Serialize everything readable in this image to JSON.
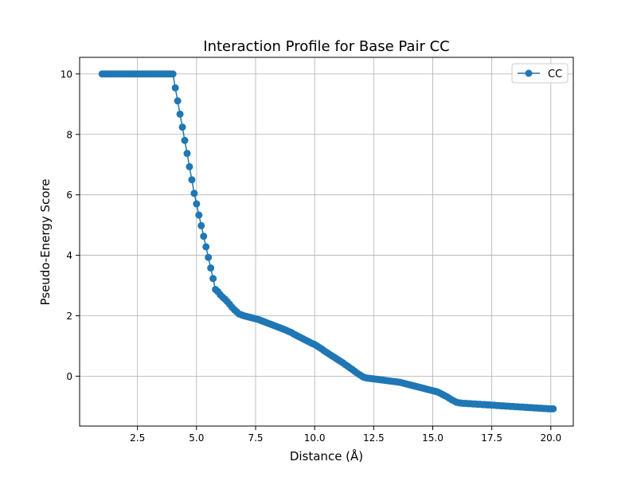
{
  "chart_data": {
    "type": "line",
    "title": "Interaction Profile for Base Pair CC",
    "xlabel": "Distance (Å)",
    "ylabel": "Pseudo-Energy Score",
    "xlim": [
      0.05,
      20.95
    ],
    "ylim": [
      -1.65,
      10.55
    ],
    "xticks": [
      2.5,
      5.0,
      7.5,
      10.0,
      12.5,
      15.0,
      17.5,
      20.0
    ],
    "xtick_labels": [
      "2.5",
      "5.0",
      "7.5",
      "10.0",
      "12.5",
      "15.0",
      "17.5",
      "20.0"
    ],
    "yticks": [
      0,
      2,
      4,
      6,
      8,
      10
    ],
    "ytick_labels": [
      "0",
      "2",
      "4",
      "6",
      "8",
      "10"
    ],
    "grid": true,
    "legend_position": "top-right",
    "series": [
      {
        "name": "CC",
        "color": "#1f77b4",
        "marker": "circle",
        "x_start": 1.0,
        "x_step": 0.1,
        "y": [
          10.0,
          10.0,
          10.0,
          10.0,
          10.0,
          10.0,
          10.0,
          10.0,
          10.0,
          10.0,
          10.0,
          10.0,
          10.0,
          10.0,
          10.0,
          10.0,
          10.0,
          10.0,
          10.0,
          10.0,
          10.0,
          10.0,
          10.0,
          10.0,
          10.0,
          10.0,
          10.0,
          10.0,
          10.0,
          10.0,
          10.0,
          9.54,
          9.11,
          8.67,
          8.24,
          7.8,
          7.37,
          6.93,
          6.5,
          6.05,
          5.7,
          5.33,
          4.98,
          4.63,
          4.28,
          3.93,
          3.58,
          3.23,
          2.87,
          2.8,
          2.7,
          2.62,
          2.55,
          2.47,
          2.38,
          2.28,
          2.2,
          2.13,
          2.06,
          2.03,
          2.0,
          1.98,
          1.96,
          1.94,
          1.92,
          1.9,
          1.88,
          1.85,
          1.82,
          1.79,
          1.76,
          1.73,
          1.7,
          1.67,
          1.64,
          1.61,
          1.58,
          1.55,
          1.52,
          1.48,
          1.45,
          1.4,
          1.36,
          1.32,
          1.28,
          1.24,
          1.2,
          1.16,
          1.12,
          1.08,
          1.05,
          1.0,
          0.95,
          0.9,
          0.84,
          0.79,
          0.74,
          0.69,
          0.64,
          0.59,
          0.54,
          0.49,
          0.44,
          0.38,
          0.33,
          0.27,
          0.22,
          0.16,
          0.1,
          0.05,
          0.0,
          -0.04,
          -0.06,
          -0.07,
          -0.08,
          -0.09,
          -0.1,
          -0.11,
          -0.12,
          -0.13,
          -0.14,
          -0.15,
          -0.16,
          -0.17,
          -0.18,
          -0.19,
          -0.2,
          -0.22,
          -0.24,
          -0.26,
          -0.28,
          -0.3,
          -0.32,
          -0.34,
          -0.36,
          -0.38,
          -0.4,
          -0.42,
          -0.44,
          -0.46,
          -0.48,
          -0.5,
          -0.52,
          -0.56,
          -0.6,
          -0.64,
          -0.68,
          -0.73,
          -0.78,
          -0.82,
          -0.86,
          -0.88,
          -0.89,
          -0.9,
          -0.9,
          -0.91,
          -0.91,
          -0.92,
          -0.92,
          -0.93,
          -0.93,
          -0.94,
          -0.94,
          -0.95,
          -0.95,
          -0.96,
          -0.96,
          -0.97,
          -0.97,
          -0.98,
          -0.98,
          -0.99,
          -0.99,
          -1.0,
          -1.0,
          -1.01,
          -1.01,
          -1.02,
          -1.02,
          -1.03,
          -1.03,
          -1.04,
          -1.04,
          -1.05,
          -1.05,
          -1.06,
          -1.06,
          -1.07,
          -1.07,
          -1.08,
          -1.08,
          -1.08
        ]
      }
    ]
  }
}
